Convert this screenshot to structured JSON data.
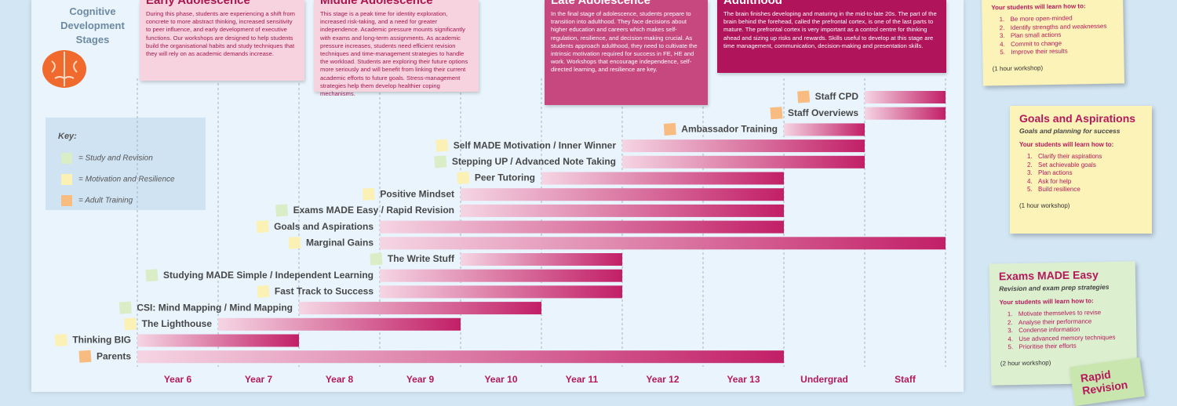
{
  "header": {
    "title": "Cognitive Development Stages"
  },
  "stages": [
    {
      "title": "Early Adolescence",
      "text": "During this phase, students are experiencing a shift from concrete to more abstract thinking, increased sensitivity to peer influence, and early development of executive functions. Our workshops are designed to help students build the organisational habits and study techniques that they will rely on as academic demands increase."
    },
    {
      "title": "Middle Adolescence",
      "text": "This stage is a peak time for identity exploration, increased risk-taking, and a need for greater independence. Academic pressure mounts significantly with exams and long-term assignments. As academic pressure increases, students need efficient revision techniques and time-management strategies to handle the workload. Students are exploring their future options more seriously and will benefit from linking their current academic efforts to future goals. Stress-management strategies help them develop healthier coping mechanisms."
    },
    {
      "title": "Late Adolescence",
      "text": "In the final stage of adolescence, students prepare to transition into adulthood. They face decisions about higher education and careers which makes self-regulation, resilience, and decision-making crucial. As students approach adulthood, they need to cultivate the intrinsic motivation required for success in FE, HE and work. Workshops that encourage independence, self-directed learning, and resilience are key."
    },
    {
      "title": "Adulthood",
      "text": "The brain finishes developing and maturing in the mid-to-late 20s. The part of the brain behind the forehead, called the prefrontal cortex, is one of the last parts to mature. The prefrontal cortex is very important as a control centre for thinking ahead and sizing up risks and rewards. Skills useful to develop at this stage are time management, communication, decision-making and presentation skills."
    }
  ],
  "chart_data": {
    "type": "gantt",
    "categories": [
      "Year 6",
      "Year 7",
      "Year 8",
      "Year 9",
      "Year 10",
      "Year 11",
      "Year 12",
      "Year 13",
      "Undergrad",
      "Staff"
    ],
    "key": {
      "title": "Key:",
      "entries": [
        {
          "label": "= Study and Revision",
          "color": "#d9edc6"
        },
        {
          "label": "= Motivation and Resilience",
          "color": "#fbf1b4"
        },
        {
          "label": "= Adult Training",
          "color": "#f8bb80"
        }
      ]
    },
    "tasks": [
      {
        "name": "Staff CPD",
        "color": "#f8bb80",
        "start": 9,
        "end": 10
      },
      {
        "name": "Staff Overviews",
        "color": "#f8bb80",
        "start": 9,
        "end": 10
      },
      {
        "name": "Ambassador Training",
        "color": "#f8bb80",
        "start": 8,
        "end": 9
      },
      {
        "name": "Self MADE Motivation / Inner Winner",
        "color": "#fbf1b4",
        "start": 6,
        "end": 9
      },
      {
        "name": "Stepping UP / Advanced Note Taking",
        "color": "#d9edc6",
        "start": 6,
        "end": 9
      },
      {
        "name": "Peer Tutoring",
        "color": "#fbf1b4",
        "start": 5,
        "end": 8
      },
      {
        "name": "Positive Mindset",
        "color": "#fbf1b4",
        "start": 4,
        "end": 8
      },
      {
        "name": "Exams MADE Easy / Rapid Revision",
        "color": "#d9edc6",
        "start": 4,
        "end": 8
      },
      {
        "name": "Goals and Aspirations",
        "color": "#fbf1b4",
        "start": 3,
        "end": 8
      },
      {
        "name": "Marginal Gains",
        "color": "#fbf1b4",
        "start": 3,
        "end": 10
      },
      {
        "name": "The Write Stuff",
        "color": "#d9edc6",
        "start": 4,
        "end": 6
      },
      {
        "name": "Studying MADE Simple / Independent Learning",
        "color": "#d9edc6",
        "start": 3,
        "end": 6
      },
      {
        "name": "Fast Track to Success",
        "color": "#fbf1b4",
        "start": 3,
        "end": 6
      },
      {
        "name": "CSI: Mind Mapping / Mind Mapping",
        "color": "#d9edc6",
        "start": 2,
        "end": 5
      },
      {
        "name": "The Lighthouse",
        "color": "#fbf1b4",
        "start": 1,
        "end": 4
      },
      {
        "name": "Thinking BIG",
        "color": "#fbf1b4",
        "start": 0,
        "end": 2
      },
      {
        "name": "Parents",
        "color": "#f8bb80",
        "start": 0,
        "end": 8
      }
    ]
  },
  "notes": [
    {
      "lead": "Your students will learn how to:",
      "items": [
        {
          "n": "1.",
          "text": "Be more open-minded"
        },
        {
          "n": "2.",
          "text": "Identify strengths and weaknesses"
        },
        {
          "n": "3.",
          "text": "Plan small actions"
        },
        {
          "n": "4.",
          "text": "Commit to change"
        },
        {
          "n": "5.",
          "text": "Improve their results"
        }
      ],
      "duration": "(1 hour workshop)"
    },
    {
      "title": "Goals and Aspirations",
      "subtitle": "Goals and planning for success",
      "lead": "Your students will learn how to:",
      "items": [
        {
          "n": "1.",
          "text": "Clarify their aspirations"
        },
        {
          "n": "2.",
          "text": "Set achievable goals"
        },
        {
          "n": "3.",
          "text": "Plan actions"
        },
        {
          "n": "4.",
          "text": "Ask for help"
        },
        {
          "n": "5.",
          "text": "Build resilience"
        }
      ],
      "duration": "(1 hour workshop)"
    },
    {
      "title": "Exams MADE Easy",
      "subtitle": "Revision and exam prep strategies",
      "lead": "Your students will learn how to:",
      "items": [
        {
          "n": "1.",
          "text": "Motivate themselves to revise"
        },
        {
          "n": "2.",
          "text": "Analyse their performance"
        },
        {
          "n": "3.",
          "text": "Condense information"
        },
        {
          "n": "4.",
          "text": "Use advanced memory techniques"
        },
        {
          "n": "5.",
          "text": "Prioritise their efforts"
        }
      ],
      "duration": "(2 hour workshop)"
    },
    {
      "title": "Rapid Revision"
    }
  ]
}
